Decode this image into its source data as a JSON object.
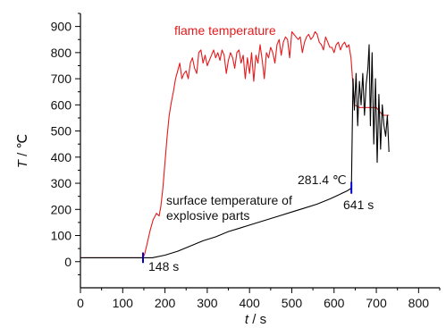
{
  "chart_data": {
    "type": "line",
    "xlabel": {
      "symbol": "t",
      "unit": " / s"
    },
    "ylabel": {
      "symbol": "T",
      "unit": " / ℃"
    },
    "xlim": [
      0,
      850
    ],
    "ylim": [
      -100,
      950
    ],
    "x_ticks": [
      0,
      100,
      200,
      300,
      400,
      500,
      600,
      700,
      800
    ],
    "y_ticks": [
      0,
      100,
      200,
      300,
      400,
      500,
      600,
      700,
      800,
      900
    ],
    "grid": false,
    "colors": {
      "flame": "#e41a1c",
      "surface": "#000000",
      "marker": "#0000cc"
    },
    "series": [
      {
        "name": "flame temperature",
        "color": "#e41a1c",
        "x": [
          0,
          148,
          152,
          158,
          165,
          172,
          180,
          186,
          190,
          195,
          200,
          205,
          210,
          215,
          220,
          225,
          230,
          235,
          240,
          245,
          250,
          255,
          260,
          265,
          270,
          275,
          280,
          285,
          290,
          295,
          300,
          305,
          310,
          315,
          320,
          325,
          330,
          335,
          340,
          345,
          350,
          355,
          360,
          365,
          370,
          375,
          380,
          385,
          390,
          395,
          400,
          405,
          410,
          415,
          420,
          425,
          430,
          435,
          440,
          445,
          450,
          455,
          460,
          465,
          470,
          475,
          480,
          485,
          490,
          495,
          500,
          505,
          510,
          515,
          520,
          525,
          530,
          535,
          540,
          545,
          550,
          555,
          560,
          565,
          570,
          575,
          580,
          585,
          590,
          595,
          600,
          605,
          610,
          615,
          620,
          625,
          630,
          635,
          640,
          648,
          660,
          680,
          700,
          715,
          730
        ],
        "values": [
          15,
          15,
          30,
          70,
          120,
          160,
          185,
          175,
          210,
          280,
          380,
          480,
          560,
          610,
          650,
          700,
          730,
          760,
          700,
          720,
          730,
          700,
          760,
          780,
          740,
          720,
          800,
          810,
          760,
          790,
          750,
          770,
          790,
          810,
          780,
          800,
          770,
          810,
          790,
          720,
          770,
          800,
          780,
          740,
          800,
          810,
          760,
          790,
          700,
          780,
          720,
          800,
          690,
          790,
          760,
          830,
          770,
          700,
          800,
          780,
          820,
          800,
          760,
          830,
          850,
          790,
          840,
          860,
          850,
          780,
          880,
          870,
          860,
          850,
          860,
          800,
          840,
          860,
          870,
          850,
          860,
          880,
          870,
          840,
          830,
          810,
          860,
          840,
          820,
          820,
          800,
          830,
          840,
          810,
          830,
          840,
          820,
          830,
          780,
          600,
          590,
          590,
          590,
          560,
          560
        ]
      },
      {
        "name": "surface temperature of explosive parts",
        "color": "#000000",
        "x": [
          0,
          148,
          170,
          200,
          230,
          260,
          290,
          320,
          350,
          380,
          410,
          440,
          470,
          500,
          530,
          560,
          590,
          610,
          630,
          641,
          643,
          645,
          648,
          652,
          656,
          660,
          664,
          668,
          672,
          676,
          680,
          683,
          686,
          690,
          694,
          698,
          702,
          706,
          710,
          714,
          718,
          722,
          726,
          730
        ],
        "values": [
          15,
          15,
          15,
          25,
          40,
          60,
          80,
          95,
          115,
          130,
          145,
          160,
          175,
          190,
          205,
          220,
          240,
          255,
          270,
          281.4,
          500,
          700,
          580,
          720,
          520,
          690,
          600,
          720,
          560,
          680,
          740,
          830,
          520,
          800,
          450,
          700,
          380,
          640,
          430,
          600,
          520,
          480,
          560,
          420
        ]
      }
    ],
    "annotations": {
      "flame_label": "flame temperature",
      "surface_label_1": "surface temperature of",
      "surface_label_2": "explosive parts",
      "start_time": "148 s",
      "peak_temp": "281.4 ℃",
      "peak_time": "641 s"
    }
  }
}
